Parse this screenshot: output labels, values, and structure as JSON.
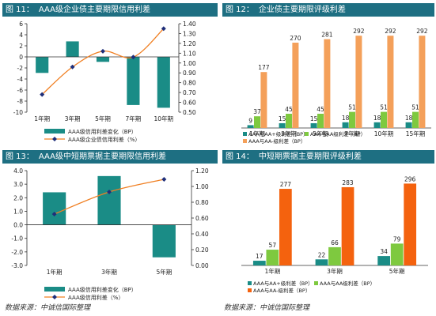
{
  "chart_data": [
    {
      "type": "bar+line",
      "figure_no": "图 11：",
      "title": "AAA级企业债主要期限信用利差",
      "categories": [
        "1年期",
        "3年期",
        "5年期",
        "7年期",
        "10年期"
      ],
      "series": [
        {
          "name": "AAA级信用利差变化（BP）",
          "type": "bar",
          "axis": "left",
          "values": [
            -2.9,
            2.8,
            -0.9,
            -8.7,
            -9.2
          ]
        },
        {
          "name": "AAA级企业债信用利差（%）",
          "type": "line",
          "axis": "right",
          "values": [
            0.68,
            0.96,
            1.12,
            1.06,
            1.35
          ]
        }
      ],
      "ylim_left": [
        -10,
        6
      ],
      "yticks_left": [
        "-10",
        "-8",
        "-6",
        "-4",
        "-2",
        "0",
        "2",
        "4",
        "6"
      ],
      "ylim_right": [
        0.5,
        1.4
      ],
      "yticks_right": [
        "0.50",
        "0.60",
        "0.70",
        "0.80",
        "0.90",
        "1.00",
        "1.10",
        "1.20",
        "1.30",
        "1.40"
      ],
      "colors": {
        "bar": "#1a8c86",
        "line": "#f07f22",
        "marker": "#1f2f7a"
      }
    },
    {
      "type": "bar",
      "figure_no": "图 12：",
      "title": "企业债主要期限评级利差",
      "categories": [
        "1年期",
        "3年期",
        "5年期",
        "7年期",
        "10年期",
        "15年期"
      ],
      "series": [
        {
          "name": "AAA与AA+级利差（BP）",
          "values": [
            9,
            15,
            15,
            18,
            18,
            18
          ],
          "labels": [
            "9",
            "15",
            "15",
            "18",
            "18",
            "18"
          ]
        },
        {
          "name": "AAA与AA级利差（BP）",
          "values": [
            37,
            45,
            45,
            51,
            51,
            51
          ],
          "labels": [
            "37",
            "45",
            "45",
            "51",
            "51",
            "51"
          ]
        },
        {
          "name": "AAA与AA-级利差（BP）",
          "values": [
            177,
            270,
            281,
            292,
            292,
            292
          ],
          "labels": [
            "177",
            "270",
            "281",
            "292",
            "292",
            "292"
          ]
        }
      ],
      "ylim": [
        0,
        300
      ],
      "colors": [
        "#1a8c86",
        "#7ec93f",
        "#f4a05a"
      ]
    },
    {
      "type": "bar+line",
      "figure_no": "图 13：",
      "title": "AAA级中短期票据主要期限信用利差",
      "categories": [
        "1年期",
        "3年期",
        "5年期"
      ],
      "series": [
        {
          "name": "AAA级信用利差变化（BP）",
          "type": "bar",
          "axis": "left",
          "values": [
            2.4,
            3.6,
            -2.4
          ]
        },
        {
          "name": "AAA级信用利差（%）",
          "type": "line",
          "axis": "right",
          "values": [
            0.65,
            0.93,
            1.09
          ]
        }
      ],
      "ylim_left": [
        -3,
        4
      ],
      "yticks_left": [
        "-3.0",
        "-2.0",
        "-1.0",
        "0.0",
        "1.0",
        "2.0",
        "3.0",
        "4.0"
      ],
      "ylim_right": [
        0,
        1.2
      ],
      "yticks_right": [
        "0.00",
        "0.20",
        "0.40",
        "0.60",
        "0.80",
        "1.00",
        "1.20"
      ],
      "colors": {
        "bar": "#1a8c86",
        "line": "#f07f22",
        "marker": "#1f2f7a"
      }
    },
    {
      "type": "bar",
      "figure_no": "图 14：",
      "title": "中短期票据主要期限评级利差",
      "categories": [
        "1年期",
        "3年期",
        "5年期"
      ],
      "series": [
        {
          "name": "AAA与AA+级利差（BP）",
          "values": [
            17,
            22,
            34
          ],
          "labels": [
            "17",
            "22",
            "34"
          ]
        },
        {
          "name": "AAA与AA级利差（BP）",
          "values": [
            57,
            66,
            79
          ],
          "labels": [
            "57",
            "66",
            "79"
          ]
        },
        {
          "name": "AAA与AA-级利差（BP）",
          "values": [
            277,
            283,
            296
          ],
          "labels": [
            "277",
            "283",
            "296"
          ]
        }
      ],
      "ylim": [
        0,
        300
      ],
      "colors": [
        "#1a8c86",
        "#7ec93f",
        "#f4620e"
      ]
    }
  ],
  "source_left": "数据来源：中诚信国际整理",
  "source_right": "数据来源：中诚信国际整理"
}
